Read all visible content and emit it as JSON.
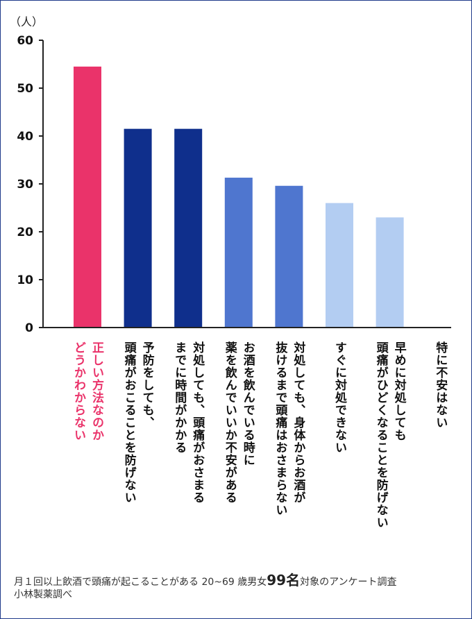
{
  "chart_data": {
    "type": "bar",
    "unit_label": "（人）",
    "ylim": [
      0,
      60
    ],
    "yticks": [
      0,
      10,
      20,
      30,
      40,
      50,
      60
    ],
    "grid": false,
    "categories": [
      "正しい方法なのか\nどうかわからない",
      "予防をしても、\n頭痛がおこることを防げない",
      "対処しても、頭痛がおさまる\nまでに時間がかかる",
      "お酒を飲んでいる時に\n薬を飲んでいいか不安がある",
      "対処しても、身体からお酒が\n抜けるまで頭痛はおさまらない",
      "すぐに対処できない",
      "早めに対処しても\n頭痛がひどくなることを防げない",
      "特に不安はない"
    ],
    "values": [
      54.5,
      41.5,
      41.5,
      31.3,
      29.6,
      26,
      23,
      0
    ],
    "colors": [
      "#ea336a",
      "#0f2f8c",
      "#0f2f8c",
      "#4f76cf",
      "#4f76cf",
      "#b3cdf2",
      "#b3cdf2",
      "#b3cdf2"
    ]
  },
  "footnote": {
    "line1_pre": "月１回以上飲酒で頭痛が起こることがある 20~69 歳男女",
    "line1_bold": "99名",
    "line1_post": "対象のアンケート調査",
    "line2": "小林製薬調べ"
  }
}
